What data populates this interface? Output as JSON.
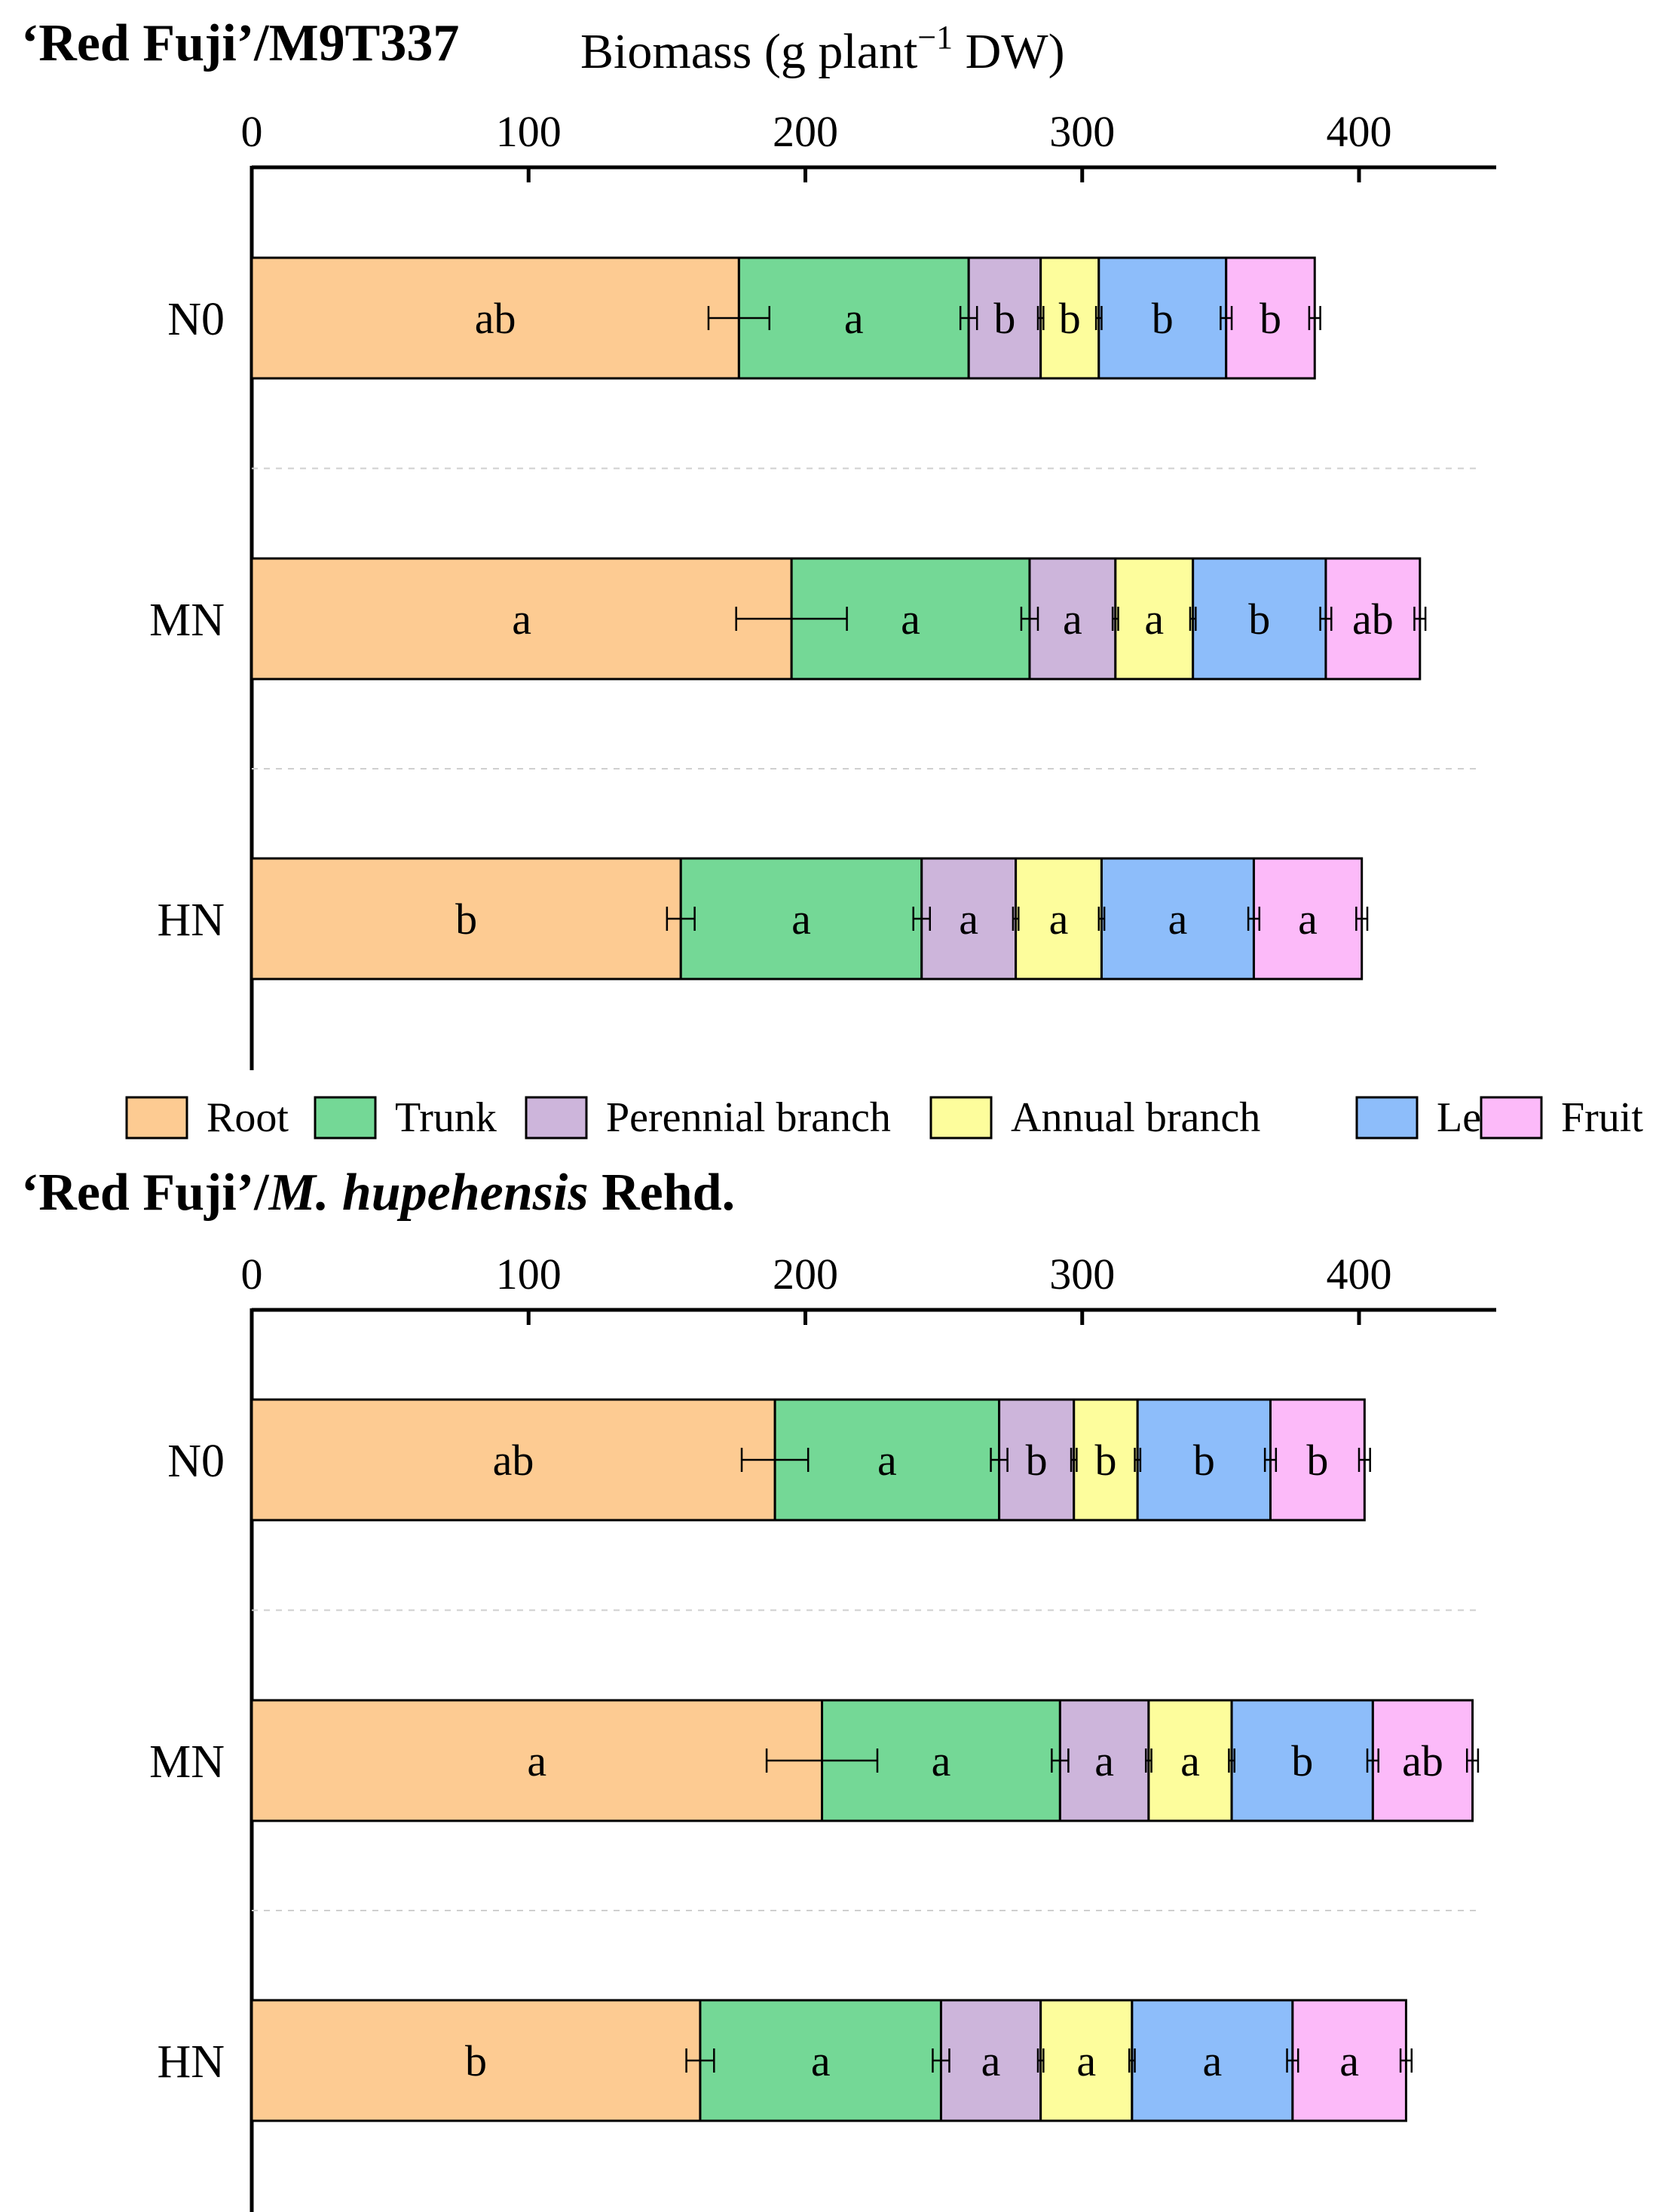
{
  "legend": [
    {
      "name": "Root",
      "color": "#FDCB92"
    },
    {
      "name": "Trunk",
      "color": "#74D896"
    },
    {
      "name": "Perennial branch",
      "color": "#CDB5DB"
    },
    {
      "name": "Annual branch",
      "color": "#FDFD9C"
    },
    {
      "name": "Leaf",
      "color": "#8DBDFA"
    },
    {
      "name": "Fruit",
      "color": "#FCBAF9"
    }
  ],
  "chart_data": [
    {
      "type": "bar",
      "orientation": "horizontal",
      "stacked": true,
      "title": "‘Red Fuji’/M9T337",
      "xlabel": "Biomass (g plant",
      "xlabel_sup": "−1",
      "xlabel_suffix": " DW)",
      "xlim": [
        0,
        450
      ],
      "xticks": [
        "0",
        "100",
        "200",
        "300",
        "400"
      ],
      "categories": [
        "N0",
        "MN",
        "HN"
      ],
      "series": [
        {
          "name": "Root",
          "values": [
            176,
            195,
            155
          ],
          "errors": [
            11,
            20,
            5
          ],
          "letters": [
            "ab",
            "a",
            "b"
          ]
        },
        {
          "name": "Trunk",
          "values": [
            83,
            86,
            87
          ],
          "errors": [
            3,
            3,
            3
          ],
          "letters": [
            "a",
            "a",
            "a"
          ]
        },
        {
          "name": "Perennial branch",
          "values": [
            26,
            31,
            34
          ],
          "errors": [
            1,
            1,
            1
          ],
          "letters": [
            "b",
            "a",
            "a"
          ]
        },
        {
          "name": "Annual branch",
          "values": [
            21,
            28,
            31
          ],
          "errors": [
            1,
            1,
            1
          ],
          "letters": [
            "b",
            "a",
            "a"
          ]
        },
        {
          "name": "Leaf",
          "values": [
            46,
            48,
            55
          ],
          "errors": [
            2,
            2,
            2
          ],
          "letters": [
            "b",
            "b",
            "a"
          ]
        },
        {
          "name": "Fruit",
          "values": [
            32,
            34,
            39
          ],
          "errors": [
            2,
            2,
            2
          ],
          "letters": [
            "b",
            "ab",
            "a"
          ]
        }
      ]
    },
    {
      "type": "bar",
      "orientation": "horizontal",
      "stacked": true,
      "title_plain": "‘Red Fuji’/",
      "title_italic": "M. hupehensis",
      "title_suffix": " Rehd.",
      "xlim": [
        0,
        450
      ],
      "xticks": [
        "0",
        "100",
        "200",
        "300",
        "400"
      ],
      "categories": [
        "N0",
        "MN",
        "HN"
      ],
      "series": [
        {
          "name": "Root",
          "values": [
            189,
            206,
            162
          ],
          "errors": [
            12,
            20,
            5
          ],
          "letters": [
            "ab",
            "a",
            "b"
          ]
        },
        {
          "name": "Trunk",
          "values": [
            81,
            86,
            87
          ],
          "errors": [
            3,
            3,
            3
          ],
          "letters": [
            "a",
            "a",
            "a"
          ]
        },
        {
          "name": "Perennial branch",
          "values": [
            27,
            32,
            36
          ],
          "errors": [
            1,
            1,
            1
          ],
          "letters": [
            "b",
            "a",
            "a"
          ]
        },
        {
          "name": "Annual branch",
          "values": [
            23,
            30,
            33
          ],
          "errors": [
            1,
            1,
            1
          ],
          "letters": [
            "b",
            "a",
            "a"
          ]
        },
        {
          "name": "Leaf",
          "values": [
            48,
            51,
            58
          ],
          "errors": [
            2,
            2,
            2
          ],
          "letters": [
            "b",
            "b",
            "a"
          ]
        },
        {
          "name": "Fruit",
          "values": [
            34,
            36,
            41
          ],
          "errors": [
            2,
            2,
            2
          ],
          "letters": [
            "b",
            "ab",
            "a"
          ]
        }
      ]
    }
  ]
}
